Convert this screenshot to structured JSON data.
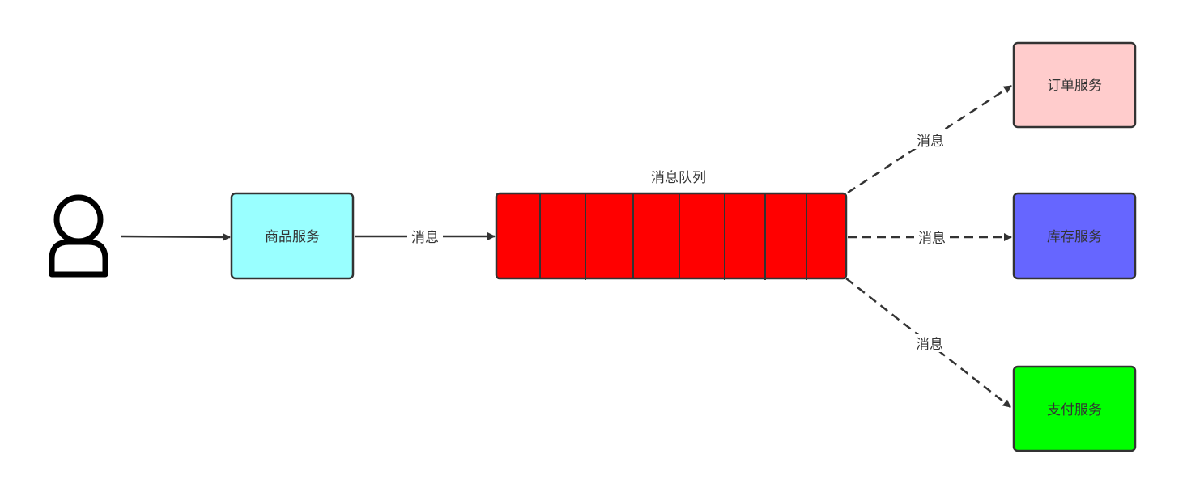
{
  "diagram": {
    "queue": {
      "label": "消息队列",
      "fill": "#ff0000",
      "cells": 8
    },
    "nodes": {
      "product": {
        "label": "商品服务",
        "fill": "#99ffff"
      },
      "order": {
        "label": "订单服务",
        "fill": "#ffcccc"
      },
      "stock": {
        "label": "库存服务",
        "fill": "#6666ff"
      },
      "payment": {
        "label": "支付服务",
        "fill": "#00ff00"
      }
    },
    "edges": {
      "product_to_queue": {
        "label": "消息"
      },
      "queue_to_order": {
        "label": "消息"
      },
      "queue_to_stock": {
        "label": "消息"
      },
      "queue_to_payment": {
        "label": "消息"
      }
    },
    "icons": {
      "user": "user-icon"
    }
  }
}
